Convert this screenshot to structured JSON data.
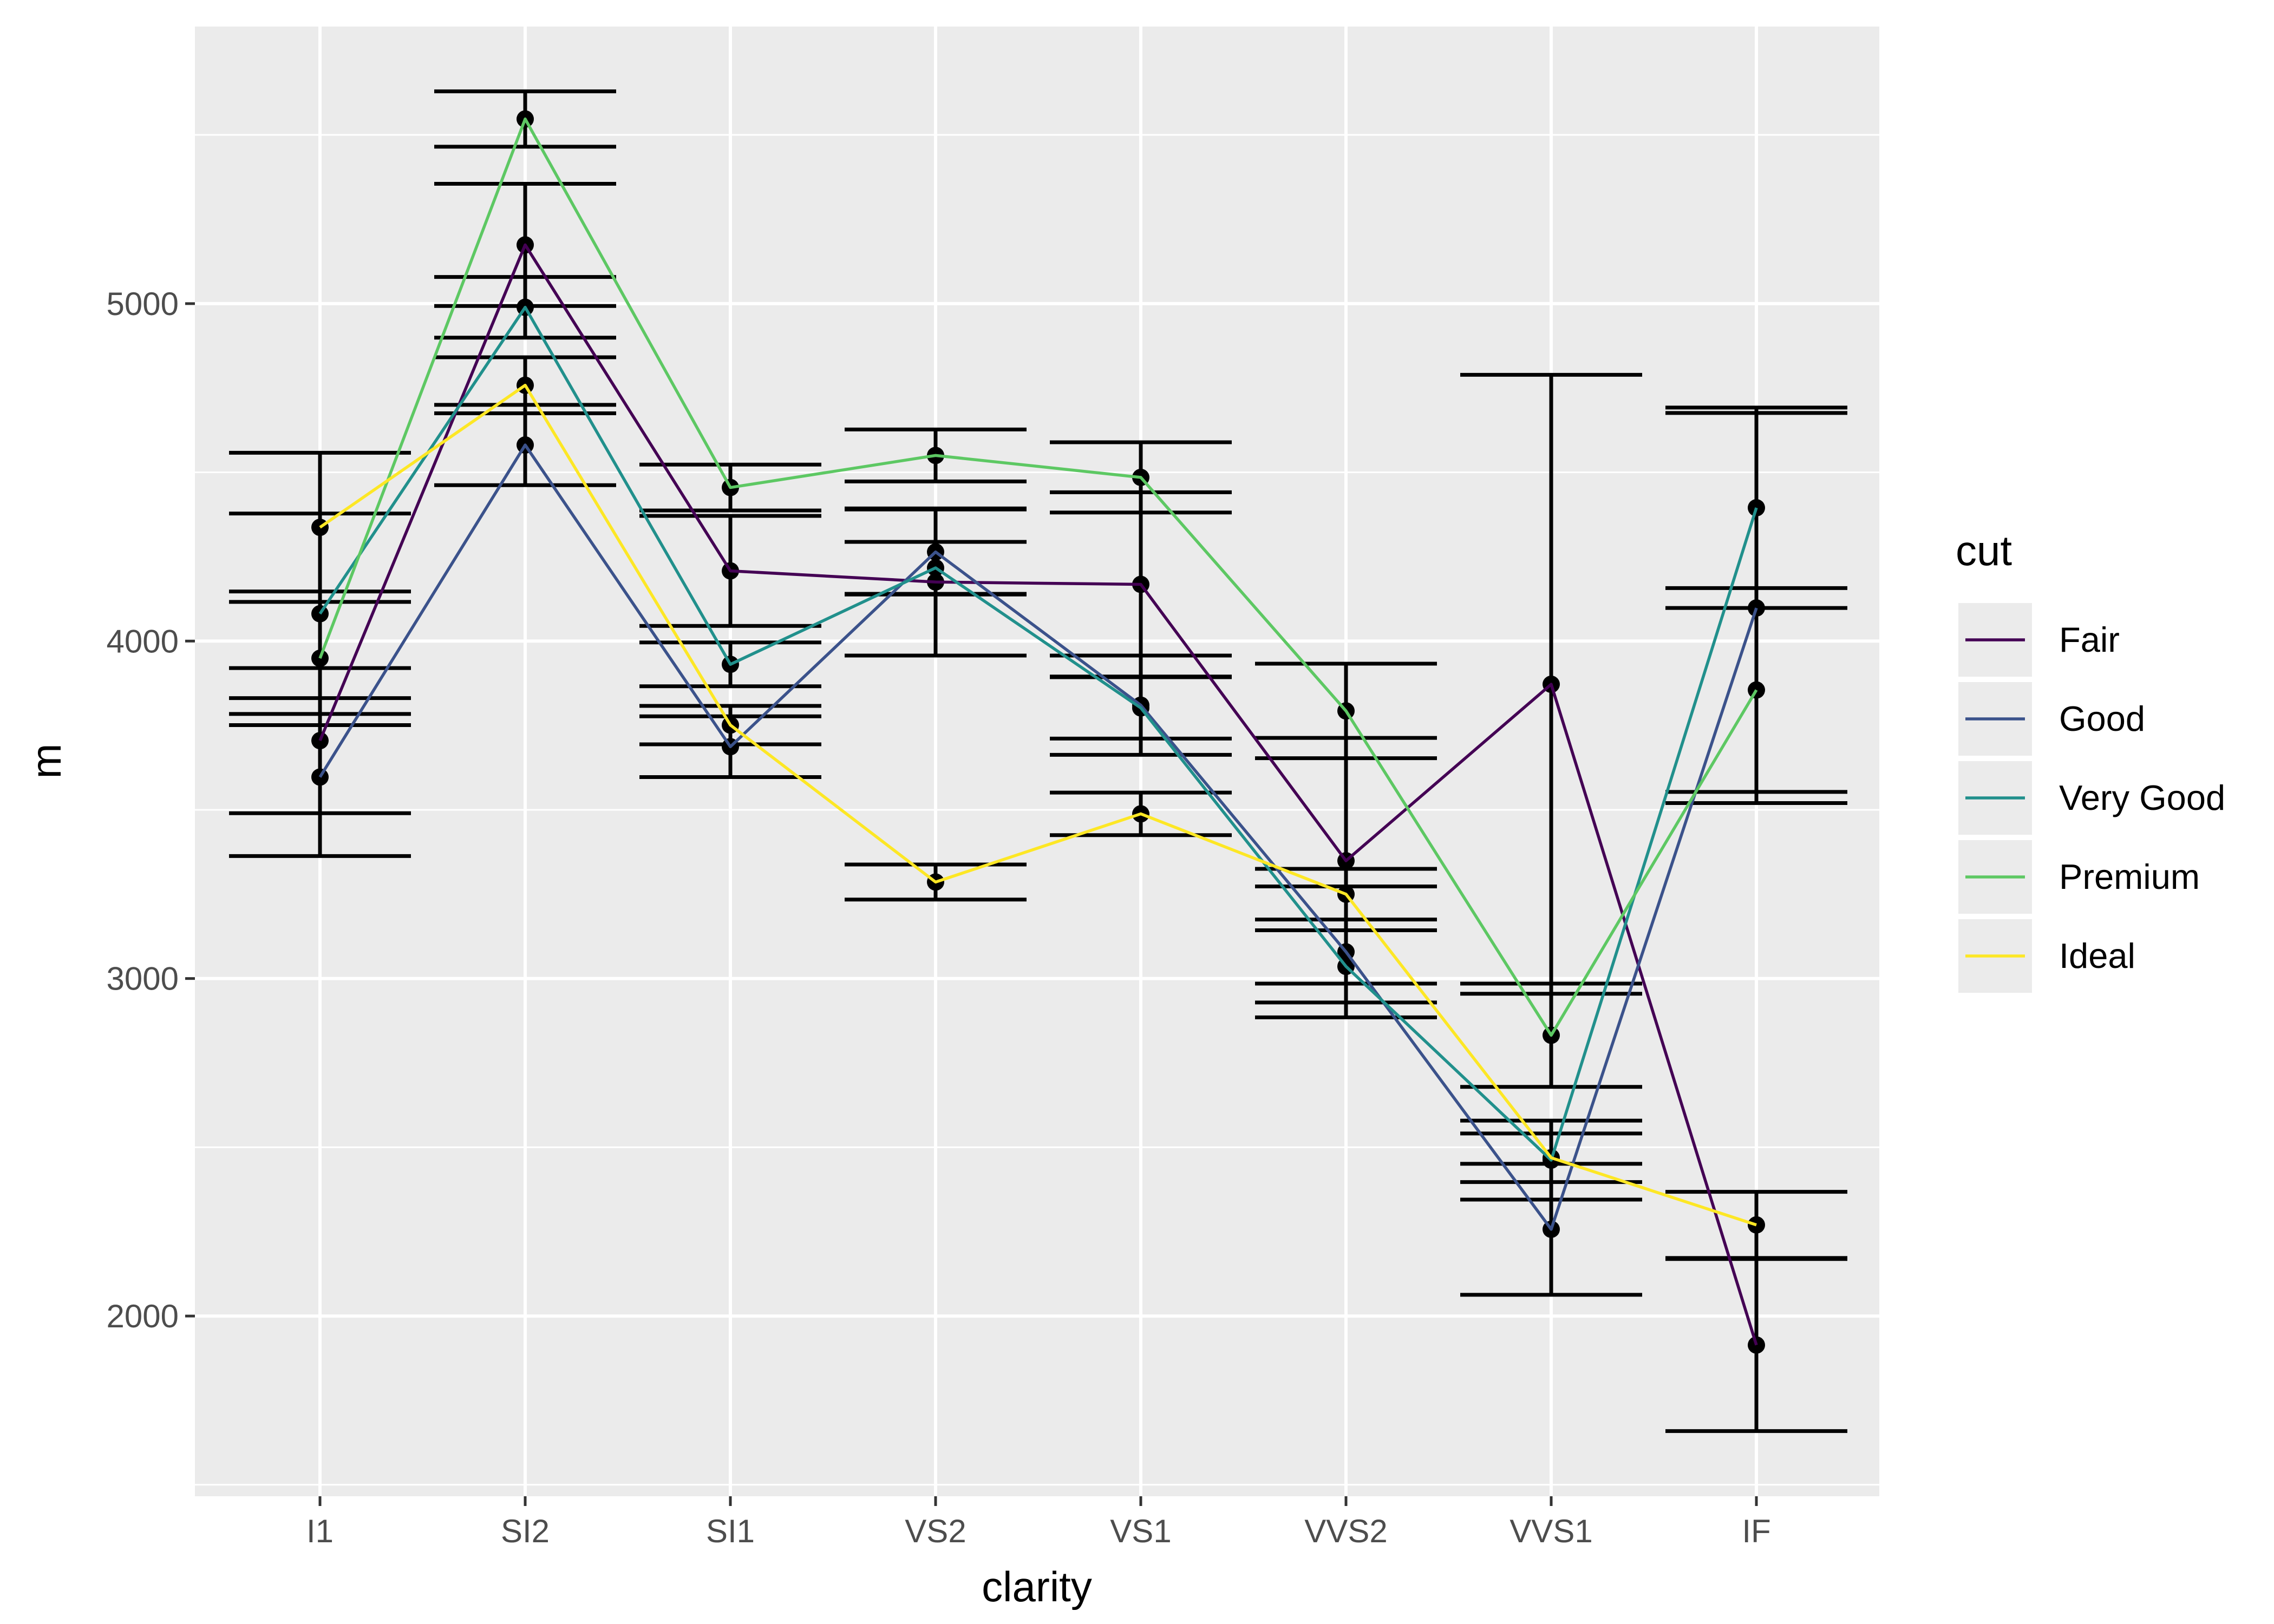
{
  "chart_data": {
    "type": "line",
    "xlabel": "clarity",
    "ylabel": "m",
    "categories": [
      "I1",
      "SI2",
      "SI1",
      "VS2",
      "VS1",
      "VVS2",
      "VVS1",
      "IF"
    ],
    "ylim": [
      1466,
      5821
    ],
    "yticks": [
      2000,
      3000,
      4000,
      5000
    ],
    "grid": true,
    "legend": {
      "title": "cut",
      "position": "right"
    },
    "series": [
      {
        "name": "Fair",
        "color": "#440154",
        "values": [
          3705,
          5174,
          4208,
          4175,
          4168,
          3349,
          3872,
          1914
        ],
        "err": [
          215,
          181,
          163,
          218,
          273,
          364,
          917,
          255
        ]
      },
      {
        "name": "Good",
        "color": "#3B528B",
        "values": [
          3597,
          4581,
          3687,
          4264,
          3810,
          3079,
          2257,
          4098
        ],
        "err": [
          234,
          119,
          90,
          126,
          147,
          194,
          194,
          578
        ]
      },
      {
        "name": "Very Good",
        "color": "#21908C",
        "values": [
          4081,
          4989,
          3931,
          4217,
          3802,
          3036,
          2462,
          4395
        ],
        "err": [
          297,
          90,
          65,
          77,
          91,
          107,
          117,
          297
        ]
      },
      {
        "name": "Premium",
        "color": "#5DC863",
        "values": [
          3949,
          5547,
          4455,
          4550,
          4485,
          3793,
          2832,
          3855
        ],
        "err": [
          198,
          82,
          68,
          77,
          104,
          140,
          153,
          302
        ]
      },
      {
        "name": "Ideal",
        "color": "#FDE725",
        "values": [
          4337,
          4758,
          3751,
          3286,
          3488,
          3250,
          2469,
          2270
        ],
        "err": [
          221,
          83,
          57,
          52,
          63,
          75,
          72,
          98
        ]
      }
    ]
  }
}
